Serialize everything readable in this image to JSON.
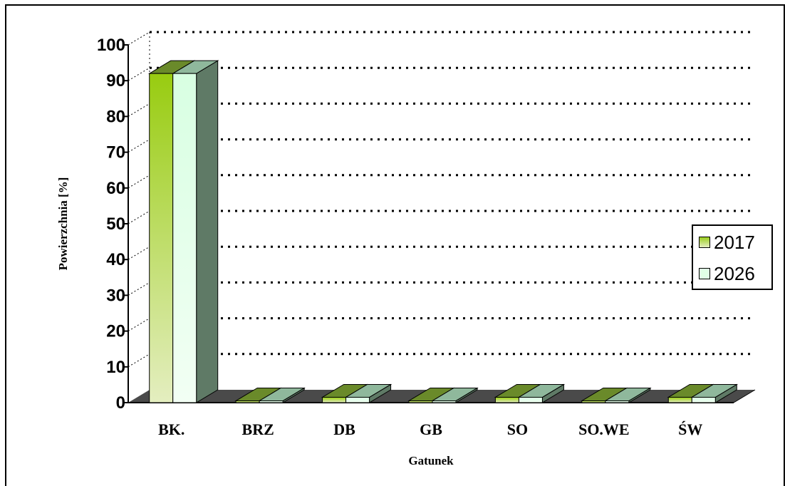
{
  "chart_data": {
    "type": "bar",
    "categories": [
      "BK.",
      "BRZ",
      "DB",
      "GB",
      "SO",
      "SO.WE",
      "ŚW"
    ],
    "series": [
      {
        "name": "2017",
        "values": [
          92,
          0.5,
          1.5,
          0.5,
          1.5,
          0.5,
          1.5
        ]
      },
      {
        "name": "2026",
        "values": [
          92,
          0.5,
          1.5,
          0.5,
          1.5,
          0.5,
          1.5
        ]
      }
    ],
    "xlabel": "Gatunek",
    "ylabel": "Powierzchnia [%]",
    "ylim": [
      0,
      100
    ],
    "yticks": [
      "0",
      "10",
      "20",
      "30",
      "40",
      "50",
      "60",
      "70",
      "80",
      "90",
      "100"
    ],
    "grid": true,
    "legend_position": "right",
    "colors": {
      "series_2017": "#9acd1e",
      "series_2017_top": "#6a8a2a",
      "series_2017_side": "#4e6a1c",
      "series_2026": "#e0ffe6",
      "series_2026_top": "#8fb89c",
      "series_2026_side": "#5f7a66",
      "floor": "#4a4a4a"
    }
  }
}
